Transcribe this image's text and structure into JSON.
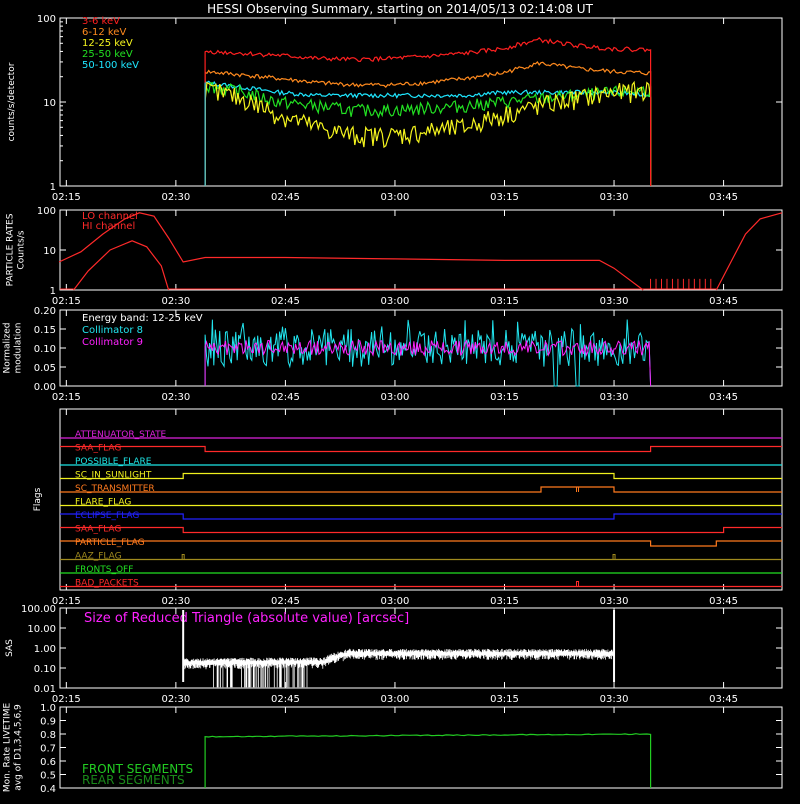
{
  "title": "HESSI Observing Summary, starting on 2014/05/13 02:14:08 UT",
  "time_ticks": [
    "02:15",
    "02:30",
    "02:45",
    "03:00",
    "03:15",
    "03:30",
    "03:45"
  ],
  "colors": {
    "3_6": "#ff2020",
    "6_12": "#ff8a1e",
    "12_25": "#f5f51e",
    "25_50": "#22e022",
    "50_100": "#1ee6ff",
    "particle": "#ff2a2a",
    "col8": "#22e6f0",
    "col9": "#ff22ff",
    "white": "#ffffff",
    "front": "#22cc22",
    "rear": "#1a8a1a"
  },
  "chart_data": [
    {
      "type": "line",
      "panel": "count_rates",
      "ylabel": "counts/s/detector",
      "scale": "log",
      "ylim": [
        1,
        100
      ],
      "yticks": [
        "100",
        "10",
        "1"
      ],
      "x_range": [
        "02:14:08",
        "03:53:00"
      ],
      "series": [
        {
          "name": "3-6 keV",
          "color_key": "3_6",
          "start": "02:34",
          "end": "03:35",
          "level": [
            40,
            38,
            36,
            33,
            32,
            33,
            35,
            38,
            43,
            55,
            47,
            43,
            42
          ]
        },
        {
          "name": "6-12 keV",
          "color_key": "6_12",
          "start": "02:34",
          "end": "03:35",
          "level": [
            23,
            21,
            19,
            17,
            16,
            16,
            17,
            19,
            22,
            29,
            25,
            23,
            22
          ]
        },
        {
          "name": "12-25 keV",
          "color_key": "12_25",
          "start": "02:34",
          "end": "03:35",
          "level": [
            14,
            11,
            7,
            5,
            4,
            4,
            4.5,
            5,
            7,
            9,
            11,
            13,
            14
          ]
        },
        {
          "name": "25-50 keV",
          "color_key": "25_50",
          "start": "02:34",
          "end": "03:35",
          "level": [
            16,
            13,
            10,
            9,
            8,
            8,
            8.5,
            9,
            10,
            11,
            12,
            13,
            14
          ]
        },
        {
          "name": "50-100 keV",
          "color_key": "50_100",
          "start": "02:34",
          "end": "03:35",
          "level": [
            17,
            15,
            13,
            12,
            12,
            12,
            12,
            12,
            13,
            13,
            13,
            13,
            12
          ]
        }
      ]
    },
    {
      "type": "line",
      "panel": "particle_rates",
      "ylabel_lines": [
        "PARTICLE RATES",
        "Counts/s"
      ],
      "scale": "log",
      "ylim": [
        1,
        100
      ],
      "yticks": [
        "100",
        "10",
        "1"
      ],
      "series": [
        {
          "name": "LO channel",
          "color_key": "particle"
        },
        {
          "name": "HI channel",
          "color_key": "particle"
        }
      ],
      "points": [
        [
          "02:14",
          5
        ],
        [
          "02:17",
          9
        ],
        [
          "02:20",
          25
        ],
        [
          "02:23",
          60
        ],
        [
          "02:25",
          85
        ],
        [
          "02:27",
          70
        ],
        [
          "02:29",
          20
        ],
        [
          "02:31",
          5
        ],
        [
          "02:34",
          6.5
        ],
        [
          "02:45",
          6.5
        ],
        [
          "03:00",
          6
        ],
        [
          "03:15",
          5.5
        ],
        [
          "03:28",
          5.5
        ],
        [
          "03:30",
          3.5
        ],
        [
          "03:34",
          1
        ]
      ],
      "points_hi": [
        [
          "02:16",
          1
        ],
        [
          "02:18",
          3
        ],
        [
          "02:21",
          10
        ],
        [
          "02:24",
          17
        ],
        [
          "02:26",
          12
        ],
        [
          "02:28",
          4
        ],
        [
          "02:29",
          1
        ]
      ],
      "points_tail": [
        [
          "03:44",
          1
        ],
        [
          "03:46",
          5
        ],
        [
          "03:48",
          25
        ],
        [
          "03:50",
          60
        ],
        [
          "03:53",
          85
        ]
      ]
    },
    {
      "type": "line",
      "panel": "modulation",
      "ylabel_lines": [
        "Normalized",
        "modulation"
      ],
      "ylim": [
        0,
        0.2
      ],
      "yticks": [
        "0.20",
        "0.15",
        "0.10",
        "0.05",
        "0.00"
      ],
      "series": [
        {
          "name": "Collimator 8",
          "color_key": "col8",
          "mean": 0.1,
          "spread": 0.05
        },
        {
          "name": "Collimator 9",
          "color_key": "col9",
          "mean": 0.1,
          "spread": 0.02
        }
      ],
      "energy_band": "Energy band: 12-25 keV",
      "start": "02:34",
      "end": "03:35",
      "dips": [
        "03:22",
        "03:25"
      ]
    },
    {
      "type": "step",
      "panel": "flags",
      "ylabel": "Flags",
      "flags": [
        {
          "name": "ATTENUATOR_STATE",
          "color": "#dd22dd",
          "changes": []
        },
        {
          "name": "SAA_FLAG",
          "color": "#ff2a2a",
          "changes": [
            [
              "02:34",
              "low"
            ],
            [
              "03:35",
              "high"
            ]
          ]
        },
        {
          "name": "POSSIBLE_FLARE",
          "color": "#1ee6e6",
          "changes": []
        },
        {
          "name": "SC_IN_SUNLIGHT",
          "color": "#f0f01e",
          "changes": [
            [
              "02:31",
              "high"
            ],
            [
              "03:30",
              "low"
            ]
          ]
        },
        {
          "name": "SC_TRANSMITTER",
          "color": "#ff7a1e",
          "changes": [
            [
              "03:20",
              "high"
            ],
            [
              "03:25",
              "pulse"
            ],
            [
              "03:30",
              "low"
            ]
          ]
        },
        {
          "name": "FLARE_FLAG",
          "color": "#f0f01e",
          "changes": []
        },
        {
          "name": "ECLIPSE_FLAG",
          "color": "#2222ff",
          "changes": [
            [
              "02:31",
              "low"
            ],
            [
              "03:30",
              "high"
            ]
          ]
        },
        {
          "name": "SAA_FLAG",
          "color": "#ff2a2a",
          "changes": [
            [
              "02:31",
              "low"
            ],
            [
              "03:45",
              "high"
            ]
          ]
        },
        {
          "name": "PARTICLE_FLAG",
          "color": "#ff7a1e",
          "changes": [
            [
              "03:35",
              "low"
            ],
            [
              "03:44",
              "high"
            ]
          ]
        },
        {
          "name": "AAZ_FLAG",
          "color": "#a08a1e",
          "changes": [
            [
              "02:31",
              "pulse"
            ],
            [
              "03:30",
              "pulse"
            ]
          ]
        },
        {
          "name": "FRONTS_OFF",
          "color": "#22e022",
          "changes": []
        },
        {
          "name": "BAD_PACKETS",
          "color": "#ff2a2a",
          "changes": [
            [
              "03:25",
              "pulse"
            ]
          ]
        }
      ]
    },
    {
      "type": "line",
      "panel": "sas",
      "ylabel": "SAS",
      "scale": "log",
      "ylim": [
        0.01,
        100
      ],
      "yticks": [
        "100.00",
        "10.00",
        "1.00",
        "0.10",
        "0.01"
      ],
      "annotation": "Size of Reduced Triangle (absolute value) [arcsec]",
      "start": "02:31",
      "end": "03:30"
    },
    {
      "type": "line",
      "panel": "livetime",
      "ylabel_lines": [
        "Mon. Rate LIVETIME",
        "avg of D1,3,4,5,6,9"
      ],
      "ylim": [
        0.4,
        1.0
      ],
      "yticks": [
        "1.0",
        "0.9",
        "0.8",
        "0.7",
        "0.6",
        "0.5",
        "0.4"
      ],
      "series": [
        {
          "name": "FRONT SEGMENTS",
          "color_key": "front"
        },
        {
          "name": "REAR SEGMENTS",
          "color_key": "rear"
        }
      ],
      "start": "02:34",
      "end": "03:35",
      "level_start": 0.78,
      "level_end": 0.8
    }
  ]
}
